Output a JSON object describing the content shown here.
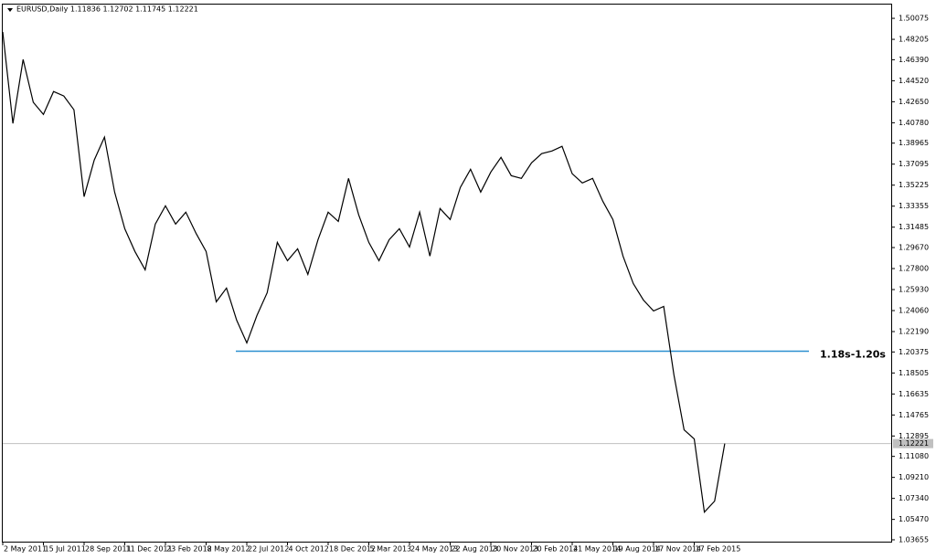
{
  "chart_data": {
    "type": "line",
    "title": "EURUSD,Daily  1.11836 1.12702 1.11745 1.12221",
    "categories": [
      "2 May 2011",
      null,
      null,
      null,
      "15 Jul 2011",
      null,
      null,
      null,
      "28 Sep 2011",
      null,
      null,
      null,
      "11 Dec 2011",
      null,
      null,
      null,
      "23 Feb 2012",
      null,
      null,
      null,
      "8 May 2012",
      null,
      null,
      null,
      "22 Jul 2012",
      null,
      null,
      null,
      "4 Oct 2012",
      null,
      null,
      null,
      "18 Dec 2012",
      null,
      null,
      null,
      "5 Mar 2013",
      null,
      null,
      null,
      "24 May 2013",
      null,
      null,
      null,
      "22 Aug 2013",
      null,
      null,
      null,
      "20 Nov 2013",
      null,
      null,
      null,
      "20 Feb 2014",
      null,
      null,
      null,
      "21 May 2014",
      null,
      null,
      null,
      "19 Aug 2014",
      null,
      null,
      null,
      "17 Nov 2014",
      null,
      null,
      null,
      "17 Feb 2015",
      null,
      null,
      null
    ],
    "series": [
      {
        "name": "EURUSD",
        "color": "#000000",
        "values": [
          1.4885,
          1.4072,
          1.4641,
          1.426,
          1.4153,
          1.4356,
          1.4316,
          1.4193,
          1.342,
          1.3746,
          1.395,
          1.3461,
          1.3135,
          1.2932,
          1.2769,
          1.3176,
          1.3339,
          1.3176,
          1.3282,
          1.3095,
          1.2932,
          1.2484,
          1.2606,
          1.2321,
          1.2118,
          1.2362,
          1.2565,
          1.3013,
          1.285,
          1.2956,
          1.2728,
          1.3037,
          1.3282,
          1.32,
          1.3583,
          1.3258,
          1.3013,
          1.285,
          1.3037,
          1.3135,
          1.2972,
          1.3282,
          1.2891,
          1.3314,
          1.3217,
          1.3502,
          1.3664,
          1.3461,
          1.364,
          1.377,
          1.3607,
          1.3583,
          1.3721,
          1.3803,
          1.3827,
          1.3868,
          1.3624,
          1.3542,
          1.3583,
          1.338,
          1.3217,
          1.2891,
          1.2647,
          1.25,
          1.2403,
          1.2443,
          1.1833,
          1.1344,
          1.1263,
          1.0612,
          1.071,
          1.1222
        ]
      }
    ],
    "ylim": [
      1.0349,
      1.513
    ],
    "yticks": [
      1.50075,
      1.48205,
      {
        "value": 1.4639,
        "label": "1.46390"
      },
      {
        "value": 1.4452,
        "label": "1.44520"
      },
      {
        "value": 1.4265,
        "label": "1.42650"
      },
      {
        "value": 1.4078,
        "label": "1.40780"
      },
      1.38965,
      1.37095,
      1.35225,
      1.33355,
      1.31485,
      {
        "value": 1.2967,
        "label": "1.29670"
      },
      {
        "value": 1.278,
        "label": "1.27800"
      },
      {
        "value": 1.2593,
        "label": "1.25930"
      },
      {
        "value": 1.2406,
        "label": "1.24060"
      },
      {
        "value": 1.2219,
        "label": "1.22190"
      },
      1.20375,
      1.18505,
      1.16635,
      1.14765,
      1.12895,
      {
        "value": 1.1108,
        "label": "1.11080"
      },
      {
        "value": 1.0921,
        "label": "1.09210"
      },
      {
        "value": 1.0734,
        "label": "1.07340"
      },
      {
        "value": 1.0547,
        "label": "1.05470"
      },
      1.03655
    ],
    "current_price": 1.12221,
    "support_level": 1.2044,
    "support_color": "#2a8fd0",
    "support_label": "1.18s-1.20s"
  }
}
